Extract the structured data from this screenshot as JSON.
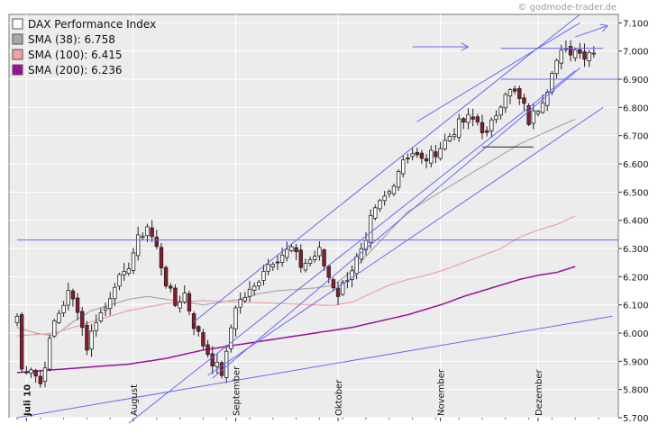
{
  "watermark": "© godmode-trader.de",
  "colors": {
    "plot_bg": "#ececec",
    "grid": "#ffffff",
    "up_candle": "#ffffff",
    "down_candle": "#8b1a2b",
    "candle_outline": "#222222",
    "sma38": "#a8a8a8",
    "sma100": "#f4a0a0",
    "sma200": "#9b0f9b",
    "trendlines": "#6a6af0"
  },
  "legend": [
    {
      "label": "DAX Performance Index",
      "swatch": "#ffffff"
    },
    {
      "label": "SMA (38): 6.758",
      "swatch": "#a8a8a8"
    },
    {
      "label": "SMA (100): 6.415",
      "swatch": "#f4a0a0"
    },
    {
      "label": "SMA (200): 6.236",
      "swatch": "#9b0f9b"
    }
  ],
  "chart_data": {
    "type": "candlestick",
    "title": "",
    "ylim": [
      5700,
      7130
    ],
    "y_ticks": [
      {
        "value": 7100,
        "label": "7.100"
      },
      {
        "value": 7000,
        "label": "7.000"
      },
      {
        "value": 6900,
        "label": "6.900"
      },
      {
        "value": 6800,
        "label": "6.800"
      },
      {
        "value": 6700,
        "label": "6.700"
      },
      {
        "value": 6600,
        "label": "6.600"
      },
      {
        "value": 6500,
        "label": "6.500"
      },
      {
        "value": 6400,
        "label": "6.400"
      },
      {
        "value": 6300,
        "label": "6.300"
      },
      {
        "value": 6200,
        "label": "6.200"
      },
      {
        "value": 6100,
        "label": "6.100"
      },
      {
        "value": 6000,
        "label": "6.000"
      },
      {
        "value": 5900,
        "label": "5.900"
      },
      {
        "value": 5800,
        "label": "5.800"
      },
      {
        "value": 5700,
        "label": "5.700"
      }
    ],
    "x_count": 128,
    "months": [
      {
        "index": 2,
        "label": "Juli 10",
        "bold": true
      },
      {
        "index": 25,
        "label": "August",
        "bold": false
      },
      {
        "index": 47,
        "label": "September",
        "bold": false
      },
      {
        "index": 69,
        "label": "Oktober",
        "bold": false
      },
      {
        "index": 91,
        "label": "November",
        "bold": false
      },
      {
        "index": 112,
        "label": "Dezember",
        "bold": false
      }
    ],
    "anchors": [
      [
        0,
        6060
      ],
      [
        1,
        5870
      ],
      [
        3,
        5880
      ],
      [
        5,
        5820
      ],
      [
        8,
        6040
      ],
      [
        11,
        6140
      ],
      [
        13,
        6090
      ],
      [
        15,
        5950
      ],
      [
        17,
        6050
      ],
      [
        19,
        6090
      ],
      [
        21,
        6180
      ],
      [
        23,
        6200
      ],
      [
        26,
        6330
      ],
      [
        28,
        6380
      ],
      [
        30,
        6300
      ],
      [
        32,
        6180
      ],
      [
        34,
        6100
      ],
      [
        36,
        6140
      ],
      [
        38,
        6030
      ],
      [
        40,
        5960
      ],
      [
        42,
        5900
      ],
      [
        44,
        5860
      ],
      [
        45,
        5920
      ],
      [
        46,
        6020
      ],
      [
        47,
        6100
      ],
      [
        49,
        6130
      ],
      [
        51,
        6160
      ],
      [
        53,
        6230
      ],
      [
        55,
        6260
      ],
      [
        57,
        6280
      ],
      [
        59,
        6300
      ],
      [
        61,
        6240
      ],
      [
        63,
        6260
      ],
      [
        65,
        6290
      ],
      [
        66,
        6240
      ],
      [
        67,
        6200
      ],
      [
        69,
        6140
      ],
      [
        71,
        6200
      ],
      [
        73,
        6260
      ],
      [
        75,
        6310
      ],
      [
        76,
        6400
      ],
      [
        78,
        6460
      ],
      [
        80,
        6500
      ],
      [
        81,
        6540
      ],
      [
        83,
        6620
      ],
      [
        85,
        6640
      ],
      [
        87,
        6610
      ],
      [
        89,
        6630
      ],
      [
        91,
        6660
      ],
      [
        93,
        6700
      ],
      [
        95,
        6740
      ],
      [
        97,
        6760
      ],
      [
        99,
        6750
      ],
      [
        101,
        6700
      ],
      [
        103,
        6780
      ],
      [
        105,
        6860
      ],
      [
        107,
        6850
      ],
      [
        109,
        6800
      ],
      [
        110,
        6750
      ],
      [
        112,
        6800
      ],
      [
        114,
        6870
      ],
      [
        115,
        6940
      ],
      [
        117,
        6990
      ],
      [
        119,
        7000
      ],
      [
        121,
        7010
      ],
      [
        122,
        6980
      ],
      [
        124,
        7010
      ]
    ],
    "sma38": [
      [
        0,
        6020
      ],
      [
        4,
        6000
      ],
      [
        8,
        5990
      ],
      [
        12,
        6040
      ],
      [
        16,
        6080
      ],
      [
        20,
        6100
      ],
      [
        24,
        6120
      ],
      [
        28,
        6130
      ],
      [
        32,
        6120
      ],
      [
        36,
        6110
      ],
      [
        40,
        6100
      ],
      [
        44,
        6110
      ],
      [
        48,
        6120
      ],
      [
        52,
        6140
      ],
      [
        56,
        6150
      ],
      [
        60,
        6155
      ],
      [
        64,
        6160
      ],
      [
        68,
        6170
      ],
      [
        72,
        6220
      ],
      [
        76,
        6290
      ],
      [
        80,
        6360
      ],
      [
        84,
        6430
      ],
      [
        88,
        6470
      ],
      [
        92,
        6510
      ],
      [
        96,
        6550
      ],
      [
        100,
        6590
      ],
      [
        104,
        6630
      ],
      [
        108,
        6670
      ],
      [
        112,
        6700
      ],
      [
        116,
        6730
      ],
      [
        120,
        6758
      ]
    ],
    "sma100": [
      [
        0,
        5990
      ],
      [
        8,
        6000
      ],
      [
        16,
        6040
      ],
      [
        24,
        6080
      ],
      [
        32,
        6105
      ],
      [
        40,
        6115
      ],
      [
        48,
        6110
      ],
      [
        56,
        6105
      ],
      [
        64,
        6100
      ],
      [
        68,
        6098
      ],
      [
        72,
        6110
      ],
      [
        76,
        6140
      ],
      [
        80,
        6170
      ],
      [
        84,
        6190
      ],
      [
        88,
        6205
      ],
      [
        92,
        6225
      ],
      [
        96,
        6250
      ],
      [
        100,
        6275
      ],
      [
        104,
        6300
      ],
      [
        108,
        6340
      ],
      [
        112,
        6365
      ],
      [
        116,
        6385
      ],
      [
        120,
        6415
      ]
    ],
    "sma200": [
      [
        0,
        5860
      ],
      [
        8,
        5870
      ],
      [
        16,
        5880
      ],
      [
        24,
        5890
      ],
      [
        32,
        5910
      ],
      [
        40,
        5940
      ],
      [
        48,
        5960
      ],
      [
        56,
        5980
      ],
      [
        64,
        6000
      ],
      [
        68,
        6010
      ],
      [
        72,
        6020
      ],
      [
        76,
        6035
      ],
      [
        80,
        6050
      ],
      [
        84,
        6065
      ],
      [
        88,
        6085
      ],
      [
        92,
        6105
      ],
      [
        96,
        6130
      ],
      [
        100,
        6150
      ],
      [
        104,
        6170
      ],
      [
        108,
        6190
      ],
      [
        112,
        6205
      ],
      [
        116,
        6215
      ],
      [
        120,
        6236
      ]
    ],
    "horizontal_lines": [
      {
        "value": 6330,
        "x0": 0,
        "x1": 128
      },
      {
        "value": 6660,
        "x0": 100,
        "x1": 111
      },
      {
        "value": 6900,
        "x0": 104,
        "x1": 128
      }
    ],
    "trend_lines": [
      [
        [
          0,
          5700
        ],
        [
          128,
          6060
        ]
      ],
      [
        [
          41,
          5850
        ],
        [
          126,
          6800
        ]
      ],
      [
        [
          38,
          6040
        ],
        [
          121,
          7130
        ]
      ],
      [
        [
          42,
          5840
        ],
        [
          121,
          6940
        ]
      ],
      [
        [
          24,
          5680
        ],
        [
          120,
          6930
        ]
      ],
      [
        [
          86,
          6750
        ],
        [
          121,
          7100
        ]
      ],
      [
        [
          104,
          7010
        ],
        [
          126,
          7010
        ]
      ]
    ],
    "arrows": [
      {
        "from": [
          85,
          7015
        ],
        "to": [
          97,
          7015
        ]
      },
      {
        "from": [
          120,
          7050
        ],
        "to": [
          127,
          7090
        ]
      }
    ]
  }
}
